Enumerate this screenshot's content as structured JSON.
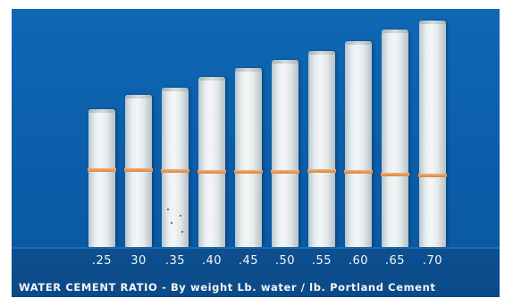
{
  "labels": [
    ".25",
    "30",
    ".35",
    ".40",
    ".45",
    ".50",
    ".55",
    ".60",
    ".65",
    ".70"
  ],
  "caption": "WATER CEMENT RATIO - By weight   Lb. water / lb. Portland Cement",
  "colors": {
    "background": "#0b5ca8",
    "cylinder": "#eef2f3",
    "band": "#e39a55"
  }
}
